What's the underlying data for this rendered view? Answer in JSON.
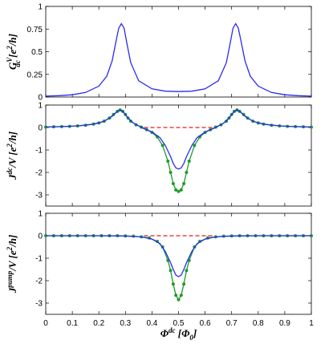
{
  "chart_data": [
    {
      "type": "line",
      "ylabel": {
        "main": "G",
        "sup": "V",
        "sub": "dc",
        "unit": " [e",
        "unit_sup": "2",
        "unit_end": "/h]"
      },
      "xlim": [
        0,
        1
      ],
      "ylim": [
        0,
        1
      ],
      "yticks": [
        "0",
        "0.25",
        "0.5",
        "0.75",
        "1"
      ],
      "series": [
        {
          "color": "#2b2bf0",
          "style": "solid",
          "x": [
            0,
            0.05,
            0.1,
            0.15,
            0.2,
            0.23,
            0.25,
            0.265,
            0.275,
            0.285,
            0.295,
            0.305,
            0.32,
            0.35,
            0.4,
            0.45,
            0.5,
            0.55,
            0.6,
            0.65,
            0.68,
            0.695,
            0.705,
            0.715,
            0.725,
            0.735,
            0.75,
            0.77,
            0.8,
            0.85,
            0.9,
            0.95,
            1
          ],
          "y": [
            0.01,
            0.015,
            0.025,
            0.05,
            0.12,
            0.23,
            0.4,
            0.62,
            0.76,
            0.81,
            0.76,
            0.6,
            0.38,
            0.18,
            0.09,
            0.065,
            0.06,
            0.065,
            0.09,
            0.18,
            0.38,
            0.6,
            0.76,
            0.81,
            0.76,
            0.62,
            0.4,
            0.23,
            0.12,
            0.05,
            0.025,
            0.015,
            0.01
          ]
        }
      ]
    },
    {
      "type": "line",
      "ylabel": {
        "main": "J",
        "sup": "dc",
        "sub": "",
        "unit": "/V [e",
        "unit_sup": "2",
        "unit_end": "/h]"
      },
      "xlim": [
        0,
        1
      ],
      "ylim": [
        -3.5,
        1
      ],
      "yticks": [
        "-3",
        "-2",
        "-1",
        "0",
        "1"
      ],
      "series": [
        {
          "color": "#e02020",
          "style": "dashed",
          "x": [
            0.37,
            0.63
          ],
          "y": [
            0,
            0
          ]
        },
        {
          "color": "#1f9a2a",
          "style": "solid-markers",
          "x": [
            0,
            0.03,
            0.06,
            0.09,
            0.12,
            0.15,
            0.18,
            0.2,
            0.22,
            0.24,
            0.255,
            0.27,
            0.28,
            0.29,
            0.3,
            0.31,
            0.32,
            0.34,
            0.36,
            0.38,
            0.4,
            0.42,
            0.44,
            0.46,
            0.47,
            0.48,
            0.49,
            0.5,
            0.51,
            0.52,
            0.53,
            0.54,
            0.56,
            0.58,
            0.6,
            0.62,
            0.64,
            0.66,
            0.68,
            0.69,
            0.7,
            0.71,
            0.72,
            0.73,
            0.745,
            0.76,
            0.78,
            0.8,
            0.82,
            0.85,
            0.88,
            0.91,
            0.94,
            0.97,
            1
          ],
          "y": [
            0.02,
            0.03,
            0.04,
            0.05,
            0.07,
            0.1,
            0.15,
            0.2,
            0.28,
            0.42,
            0.58,
            0.72,
            0.78,
            0.72,
            0.58,
            0.42,
            0.28,
            0.12,
            0.02,
            -0.1,
            -0.22,
            -0.42,
            -0.8,
            -1.5,
            -2.0,
            -2.5,
            -2.78,
            -2.85,
            -2.78,
            -2.5,
            -2.0,
            -1.5,
            -0.8,
            -0.42,
            -0.22,
            -0.1,
            0.02,
            0.12,
            0.28,
            0.42,
            0.58,
            0.72,
            0.78,
            0.72,
            0.58,
            0.42,
            0.28,
            0.2,
            0.15,
            0.1,
            0.07,
            0.05,
            0.04,
            0.03,
            0.02
          ]
        },
        {
          "color": "#2b2bf0",
          "style": "solid",
          "x": [
            0,
            0.06,
            0.12,
            0.18,
            0.22,
            0.25,
            0.27,
            0.28,
            0.29,
            0.31,
            0.33,
            0.36,
            0.4,
            0.43,
            0.45,
            0.47,
            0.48,
            0.49,
            0.5,
            0.51,
            0.52,
            0.53,
            0.55,
            0.57,
            0.6,
            0.64,
            0.67,
            0.69,
            0.71,
            0.72,
            0.73,
            0.75,
            0.78,
            0.82,
            0.88,
            0.94,
            1
          ],
          "y": [
            0.02,
            0.04,
            0.07,
            0.15,
            0.28,
            0.5,
            0.72,
            0.78,
            0.72,
            0.42,
            0.2,
            0.0,
            -0.2,
            -0.45,
            -0.8,
            -1.3,
            -1.6,
            -1.8,
            -1.85,
            -1.8,
            -1.6,
            -1.3,
            -0.8,
            -0.45,
            -0.2,
            0.0,
            0.2,
            0.42,
            0.72,
            0.78,
            0.72,
            0.5,
            0.28,
            0.15,
            0.07,
            0.04,
            0.02
          ]
        }
      ]
    },
    {
      "type": "line",
      "ylabel": {
        "main": "J",
        "sup": "pump",
        "sub": "",
        "unit": "/V [e",
        "unit_sup": "2",
        "unit_end": "/h]"
      },
      "xlim": [
        0,
        1
      ],
      "ylim": [
        -3.5,
        1
      ],
      "yticks": [
        "-3",
        "-2",
        "-1",
        "0",
        "1"
      ],
      "xticks": [
        "0",
        "0.1",
        "0.2",
        "0.3",
        "0.4",
        "0.5",
        "0.6",
        "0.7",
        "0.8",
        "0.9",
        "1"
      ],
      "xlabel": {
        "main": "Φ",
        "sup": "dc",
        "unit": " [Φ",
        "unit_sub": "0",
        "unit_end": "]"
      },
      "series": [
        {
          "color": "#e02020",
          "style": "dashed",
          "x": [
            0.37,
            0.63
          ],
          "y": [
            0,
            0
          ]
        },
        {
          "color": "#1f9a2a",
          "style": "solid-markers",
          "x": [
            0,
            0.03,
            0.06,
            0.09,
            0.12,
            0.15,
            0.18,
            0.21,
            0.24,
            0.27,
            0.3,
            0.33,
            0.36,
            0.39,
            0.42,
            0.44,
            0.46,
            0.47,
            0.48,
            0.49,
            0.5,
            0.51,
            0.52,
            0.53,
            0.54,
            0.56,
            0.58,
            0.61,
            0.64,
            0.67,
            0.7,
            0.73,
            0.76,
            0.79,
            0.82,
            0.85,
            0.88,
            0.91,
            0.94,
            0.97,
            1
          ],
          "y": [
            0,
            0,
            0,
            0,
            0,
            0,
            0,
            0,
            0,
            0,
            -0.01,
            -0.02,
            -0.05,
            -0.1,
            -0.25,
            -0.5,
            -1.1,
            -1.55,
            -2.15,
            -2.65,
            -2.85,
            -2.65,
            -2.15,
            -1.55,
            -1.1,
            -0.5,
            -0.25,
            -0.1,
            -0.05,
            -0.02,
            -0.01,
            0,
            0,
            0,
            0,
            0,
            0,
            0,
            0,
            0,
            0
          ]
        },
        {
          "color": "#2b2bf0",
          "style": "solid",
          "x": [
            0,
            0.1,
            0.2,
            0.3,
            0.36,
            0.4,
            0.43,
            0.45,
            0.47,
            0.48,
            0.49,
            0.5,
            0.51,
            0.52,
            0.53,
            0.55,
            0.57,
            0.6,
            0.64,
            0.7,
            0.8,
            0.9,
            1
          ],
          "y": [
            0,
            0,
            0,
            -0.01,
            -0.05,
            -0.15,
            -0.35,
            -0.7,
            -1.2,
            -1.5,
            -1.75,
            -1.82,
            -1.75,
            -1.5,
            -1.2,
            -0.7,
            -0.35,
            -0.15,
            -0.05,
            -0.01,
            0,
            0,
            0
          ]
        }
      ]
    }
  ]
}
